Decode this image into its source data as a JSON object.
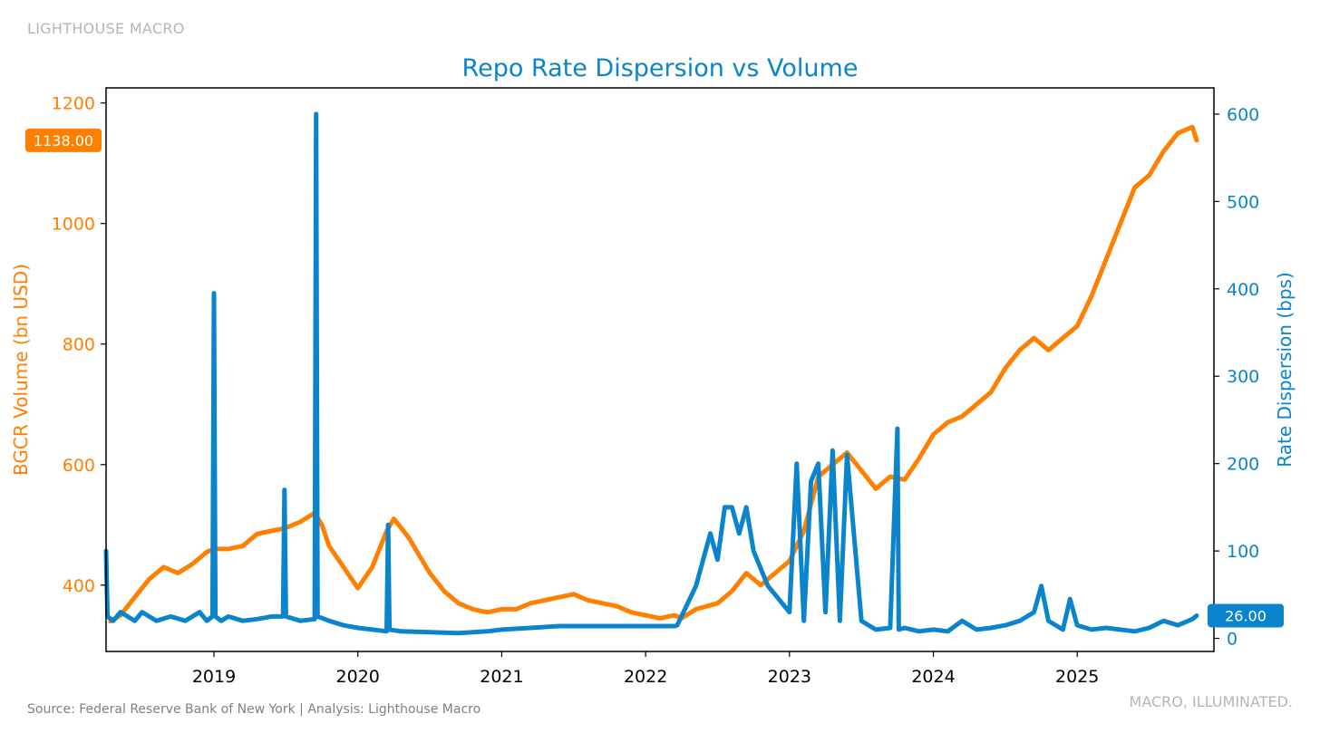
{
  "header": {
    "brand": "LIGHTHOUSE MACRO"
  },
  "footer": {
    "source": "Source: Federal Reserve Bank of New York | Analysis: Lighthouse Macro",
    "tagline": "MACRO, ILLUMINATED."
  },
  "colors": {
    "volume": "#FF8000",
    "dispersion": "#0A84CC",
    "title": "#0A84CC"
  },
  "chart_data": {
    "type": "line",
    "title": "Repo Rate Dispersion vs Volume",
    "xlabel": "",
    "xlim": [
      2018.25,
      2025.95
    ],
    "x_ticks": [
      "2019",
      "2020",
      "2021",
      "2022",
      "2023",
      "2024",
      "2025"
    ],
    "y_left": {
      "label": "BGCR Volume (bn USD)",
      "ylim": [
        290,
        1225
      ],
      "ticks": [
        400,
        600,
        800,
        1000,
        1200
      ]
    },
    "y_right": {
      "label": "Rate Dispersion (bps)",
      "ylim": [
        -15,
        630
      ],
      "ticks": [
        0,
        100,
        200,
        300,
        400,
        500,
        600
      ]
    },
    "legend": "none",
    "grid": false,
    "last_values": {
      "volume": "1138.00",
      "dispersion": "26.00"
    },
    "series": [
      {
        "name": "BGCR Volume",
        "axis": "left",
        "x": [
          2018.28,
          2018.35,
          2018.45,
          2018.55,
          2018.65,
          2018.75,
          2018.85,
          2018.95,
          2019.0,
          2019.1,
          2019.2,
          2019.3,
          2019.4,
          2019.5,
          2019.6,
          2019.7,
          2019.75,
          2019.8,
          2019.9,
          2020.0,
          2020.1,
          2020.2,
          2020.25,
          2020.35,
          2020.5,
          2020.6,
          2020.7,
          2020.8,
          2020.9,
          2021.0,
          2021.1,
          2021.2,
          2021.3,
          2021.4,
          2021.5,
          2021.6,
          2021.7,
          2021.8,
          2021.9,
          2022.0,
          2022.1,
          2022.2,
          2022.25,
          2022.35,
          2022.5,
          2022.6,
          2022.7,
          2022.8,
          2022.9,
          2023.0,
          2023.1,
          2023.2,
          2023.3,
          2023.4,
          2023.5,
          2023.6,
          2023.7,
          2023.8,
          2023.9,
          2024.0,
          2024.1,
          2024.2,
          2024.3,
          2024.4,
          2024.5,
          2024.6,
          2024.7,
          2024.8,
          2024.9,
          2025.0,
          2025.1,
          2025.2,
          2025.3,
          2025.4,
          2025.5,
          2025.6,
          2025.7,
          2025.8,
          2025.83
        ],
        "values": [
          340,
          350,
          380,
          410,
          430,
          420,
          435,
          455,
          460,
          460,
          465,
          485,
          490,
          495,
          505,
          520,
          500,
          465,
          430,
          395,
          430,
          490,
          510,
          480,
          420,
          390,
          370,
          360,
          355,
          360,
          360,
          370,
          375,
          380,
          385,
          375,
          370,
          365,
          355,
          350,
          345,
          350,
          345,
          360,
          370,
          390,
          420,
          400,
          420,
          440,
          490,
          580,
          600,
          620,
          590,
          560,
          580,
          575,
          610,
          650,
          670,
          680,
          700,
          720,
          760,
          790,
          810,
          790,
          810,
          830,
          880,
          940,
          1000,
          1060,
          1080,
          1120,
          1150,
          1160,
          1138
        ]
      },
      {
        "name": "Rate Dispersion",
        "axis": "right",
        "x": [
          2018.25,
          2018.26,
          2018.3,
          2018.35,
          2018.4,
          2018.45,
          2018.5,
          2018.55,
          2018.6,
          2018.7,
          2018.8,
          2018.9,
          2018.95,
          2018.99,
          2019.0,
          2019.01,
          2019.05,
          2019.1,
          2019.2,
          2019.3,
          2019.4,
          2019.48,
          2019.49,
          2019.5,
          2019.6,
          2019.7,
          2019.71,
          2019.72,
          2019.8,
          2019.9,
          2020.0,
          2020.1,
          2020.2,
          2020.21,
          2020.22,
          2020.3,
          2020.5,
          2020.7,
          2020.9,
          2021.0,
          2021.2,
          2021.4,
          2021.6,
          2021.8,
          2022.0,
          2022.2,
          2022.22,
          2022.35,
          2022.45,
          2022.5,
          2022.55,
          2022.6,
          2022.65,
          2022.7,
          2022.75,
          2022.8,
          2022.85,
          2022.9,
          2022.95,
          2023.0,
          2023.05,
          2023.1,
          2023.15,
          2023.2,
          2023.25,
          2023.3,
          2023.35,
          2023.4,
          2023.5,
          2023.55,
          2023.6,
          2023.7,
          2023.75,
          2023.76,
          2023.8,
          2023.9,
          2024.0,
          2024.1,
          2024.2,
          2024.3,
          2024.4,
          2024.5,
          2024.6,
          2024.7,
          2024.75,
          2024.8,
          2024.9,
          2024.95,
          2025.0,
          2025.1,
          2025.2,
          2025.3,
          2025.4,
          2025.5,
          2025.6,
          2025.7,
          2025.8,
          2025.83
        ],
        "values": [
          100,
          25,
          20,
          30,
          25,
          20,
          30,
          25,
          20,
          25,
          20,
          30,
          20,
          25,
          395,
          25,
          20,
          25,
          20,
          22,
          25,
          25,
          170,
          25,
          20,
          22,
          600,
          25,
          20,
          15,
          12,
          10,
          8,
          130,
          10,
          8,
          7,
          6,
          8,
          10,
          12,
          14,
          14,
          14,
          14,
          14,
          15,
          60,
          120,
          90,
          150,
          150,
          120,
          150,
          100,
          80,
          60,
          50,
          40,
          30,
          200,
          20,
          180,
          200,
          30,
          215,
          20,
          210,
          20,
          15,
          10,
          12,
          240,
          10,
          12,
          8,
          10,
          8,
          20,
          10,
          12,
          15,
          20,
          30,
          60,
          20,
          10,
          45,
          15,
          10,
          12,
          10,
          8,
          12,
          20,
          15,
          22,
          26
        ]
      }
    ]
  }
}
